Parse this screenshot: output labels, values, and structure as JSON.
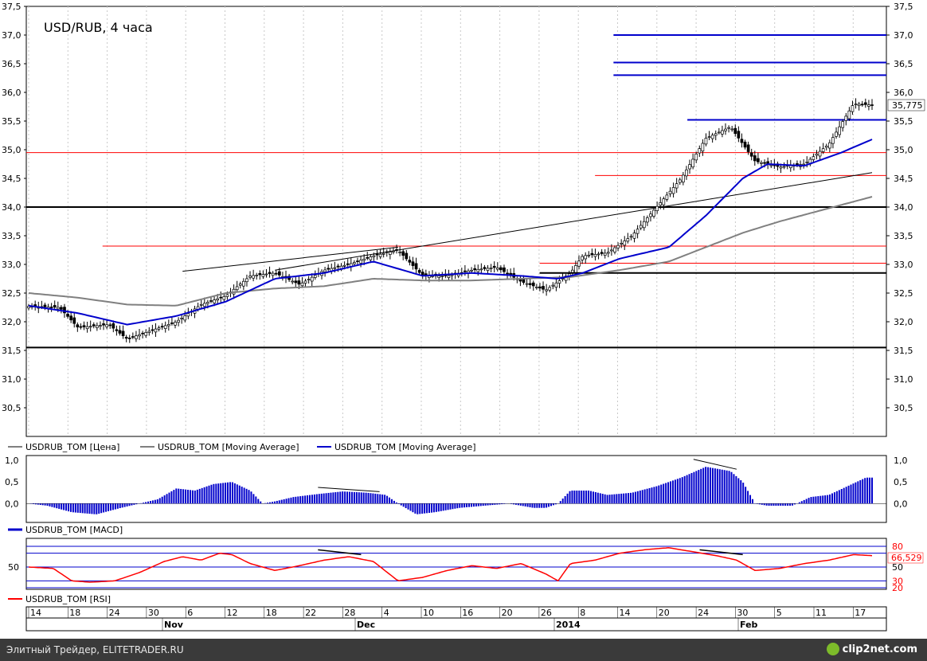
{
  "chart_title": "USD/RUB, 4 часа",
  "last_price_label": "35,775",
  "legend_price": [
    "USDRUB_TOM [Цена]",
    "USDRUB_TOM [Moving Average]",
    "USDRUB_TOM [Moving Average]"
  ],
  "legend_macd": "USDRUB_TOM [MACD]",
  "legend_rsi": "USDRUB_TOM [RSI]",
  "footer_credit": "Элитный Трейдер, ELITETRADER.RU",
  "footer_logo": "clip2net.com",
  "colors": {
    "price": "#000000",
    "ma_long": "#808080",
    "ma_short": "#0000cc",
    "macd": "#0000cc",
    "rsi": "#ff0000",
    "support_black": "#000000",
    "level_red": "#ff0000",
    "level_blue": "#0000cc",
    "footer_bg": "#3a3a3a"
  },
  "chart_data": [
    {
      "type": "candlestick",
      "title": "USD/RUB, 4 часа",
      "y_ticks": [
        "37,5",
        "37,0",
        "36,5",
        "36,0",
        "35,5",
        "35,0",
        "34,5",
        "34,0",
        "33,5",
        "33,0",
        "32,5",
        "32,0",
        "31,5",
        "31,0",
        "30,5"
      ],
      "ylim": [
        30.0,
        37.5
      ],
      "x_day_ticks": [
        "14",
        "18",
        "24",
        "30",
        "6",
        "12",
        "18",
        "22",
        "28",
        "4",
        "10",
        "16",
        "20",
        "26",
        "8",
        "14",
        "20",
        "24",
        "30",
        "5",
        "11",
        "17"
      ],
      "x_month_labels": [
        "Nov",
        "Dec",
        "2014",
        "Feb"
      ],
      "close_path_anchors": [
        [
          0,
          32.27
        ],
        [
          5,
          32.25
        ],
        [
          8,
          31.9
        ],
        [
          13,
          31.95
        ],
        [
          16,
          31.7
        ],
        [
          20,
          31.85
        ],
        [
          24,
          32.0
        ],
        [
          28,
          32.3
        ],
        [
          32,
          32.45
        ],
        [
          36,
          32.8
        ],
        [
          40,
          32.85
        ],
        [
          44,
          32.65
        ],
        [
          48,
          32.9
        ],
        [
          52,
          33.0
        ],
        [
          56,
          33.15
        ],
        [
          60,
          33.25
        ],
        [
          64,
          32.8
        ],
        [
          68,
          32.8
        ],
        [
          72,
          32.9
        ],
        [
          76,
          32.95
        ],
        [
          80,
          32.7
        ],
        [
          84,
          32.55
        ],
        [
          88,
          32.85
        ],
        [
          90,
          33.15
        ],
        [
          94,
          33.2
        ],
        [
          98,
          33.5
        ],
        [
          102,
          34.0
        ],
        [
          106,
          34.5
        ],
        [
          110,
          35.2
        ],
        [
          114,
          35.4
        ],
        [
          118,
          34.8
        ],
        [
          122,
          34.7
        ],
        [
          126,
          34.75
        ],
        [
          130,
          35.1
        ],
        [
          134,
          35.8
        ],
        [
          137,
          35.78
        ]
      ],
      "last_close": 35.775,
      "moving_average_long_anchors": [
        [
          0,
          32.5
        ],
        [
          8,
          32.42
        ],
        [
          16,
          32.3
        ],
        [
          24,
          32.28
        ],
        [
          32,
          32.5
        ],
        [
          40,
          32.58
        ],
        [
          48,
          32.62
        ],
        [
          56,
          32.75
        ],
        [
          64,
          32.72
        ],
        [
          72,
          32.72
        ],
        [
          80,
          32.75
        ],
        [
          88,
          32.78
        ],
        [
          96,
          32.9
        ],
        [
          104,
          33.05
        ],
        [
          110,
          33.3
        ],
        [
          116,
          33.55
        ],
        [
          122,
          33.75
        ],
        [
          130,
          33.98
        ],
        [
          137,
          34.18
        ]
      ],
      "moving_average_short_anchors": [
        [
          0,
          32.28
        ],
        [
          8,
          32.15
        ],
        [
          16,
          31.95
        ],
        [
          24,
          32.1
        ],
        [
          32,
          32.35
        ],
        [
          40,
          32.75
        ],
        [
          48,
          32.85
        ],
        [
          56,
          33.05
        ],
        [
          64,
          32.8
        ],
        [
          72,
          32.85
        ],
        [
          80,
          32.8
        ],
        [
          86,
          32.75
        ],
        [
          90,
          32.85
        ],
        [
          96,
          33.1
        ],
        [
          104,
          33.3
        ],
        [
          110,
          33.85
        ],
        [
          116,
          34.5
        ],
        [
          120,
          34.75
        ],
        [
          126,
          34.72
        ],
        [
          132,
          34.95
        ],
        [
          137,
          35.18
        ]
      ],
      "horizontal_levels": [
        {
          "value": 34.95,
          "color": "#ff0000",
          "from": 0,
          "to": 137
        },
        {
          "value": 33.32,
          "color": "#ff0000",
          "from": 12,
          "to": 137
        },
        {
          "value": 34.55,
          "color": "#ff0000",
          "from": 92,
          "to": 137
        },
        {
          "value": 33.02,
          "color": "#ff0000",
          "from": 83,
          "to": 137
        },
        {
          "value": 34.0,
          "color": "#000000",
          "from": 0,
          "to": 137
        },
        {
          "value": 31.55,
          "color": "#000000",
          "from": 0,
          "to": 137
        },
        {
          "value": 32.85,
          "color": "#000000",
          "from": 83,
          "to": 137
        },
        {
          "value": 37.0,
          "color": "#0000cc",
          "from": 95,
          "to": 137
        },
        {
          "value": 36.52,
          "color": "#0000cc",
          "from": 95,
          "to": 137
        },
        {
          "value": 36.3,
          "color": "#0000cc",
          "from": 95,
          "to": 137
        },
        {
          "value": 35.52,
          "color": "#0000cc",
          "from": 107,
          "to": 137
        }
      ],
      "trendlines": [
        {
          "from": [
            25,
            32.88
          ],
          "to": [
            60,
            33.3
          ],
          "color": "#000000"
        },
        {
          "from": [
            40,
            32.9
          ],
          "to": [
            137,
            34.6
          ],
          "color": "#000000"
        }
      ]
    },
    {
      "type": "area",
      "title": "USDRUB_TOM [MACD]",
      "y_ticks": [
        "1,0",
        "0,5",
        "0,0"
      ],
      "ylim": [
        -0.4,
        1.0
      ],
      "values_anchors": [
        [
          0,
          0.0
        ],
        [
          3,
          -0.05
        ],
        [
          7,
          -0.2
        ],
        [
          11,
          -0.25
        ],
        [
          15,
          -0.1
        ],
        [
          18,
          0.0
        ],
        [
          21,
          0.1
        ],
        [
          24,
          0.35
        ],
        [
          27,
          0.3
        ],
        [
          30,
          0.45
        ],
        [
          33,
          0.5
        ],
        [
          36,
          0.3
        ],
        [
          38,
          0.0
        ],
        [
          40,
          0.05
        ],
        [
          43,
          0.15
        ],
        [
          47,
          0.22
        ],
        [
          51,
          0.28
        ],
        [
          55,
          0.25
        ],
        [
          58,
          0.2
        ],
        [
          60,
          0.0
        ],
        [
          63,
          -0.25
        ],
        [
          66,
          -0.2
        ],
        [
          70,
          -0.1
        ],
        [
          74,
          -0.05
        ],
        [
          78,
          0.0
        ],
        [
          82,
          -0.1
        ],
        [
          84,
          -0.1
        ],
        [
          86,
          0.0
        ],
        [
          88,
          0.3
        ],
        [
          91,
          0.3
        ],
        [
          94,
          0.2
        ],
        [
          98,
          0.25
        ],
        [
          102,
          0.4
        ],
        [
          106,
          0.6
        ],
        [
          110,
          0.85
        ],
        [
          114,
          0.75
        ],
        [
          116,
          0.5
        ],
        [
          118,
          0.0
        ],
        [
          120,
          -0.05
        ],
        [
          124,
          -0.05
        ],
        [
          127,
          0.15
        ],
        [
          130,
          0.2
        ],
        [
          133,
          0.4
        ],
        [
          136,
          0.6
        ]
      ],
      "divergence_lines": [
        {
          "from": [
            47,
            0.3
          ],
          "to": [
            57,
            0.2
          ]
        },
        {
          "from": [
            108,
            0.95
          ],
          "to": [
            115,
            0.72
          ]
        }
      ]
    },
    {
      "type": "line",
      "title": "USDRUB_TOM [RSI]",
      "y_ticks": [
        "80",
        "50",
        "30",
        "20"
      ],
      "ylim": [
        20,
        80
      ],
      "last_value_label": "66,529",
      "guide_levels": [
        80,
        70,
        50,
        30,
        20
      ],
      "values_anchors": [
        [
          0,
          50
        ],
        [
          4,
          48
        ],
        [
          7,
          30
        ],
        [
          10,
          28
        ],
        [
          14,
          30
        ],
        [
          18,
          42
        ],
        [
          22,
          58
        ],
        [
          25,
          65
        ],
        [
          28,
          60
        ],
        [
          31,
          70
        ],
        [
          33,
          68
        ],
        [
          36,
          55
        ],
        [
          40,
          45
        ],
        [
          44,
          52
        ],
        [
          48,
          60
        ],
        [
          52,
          65
        ],
        [
          56,
          58
        ],
        [
          60,
          30
        ],
        [
          64,
          35
        ],
        [
          68,
          45
        ],
        [
          72,
          52
        ],
        [
          76,
          48
        ],
        [
          80,
          55
        ],
        [
          84,
          40
        ],
        [
          86,
          30
        ],
        [
          88,
          55
        ],
        [
          92,
          60
        ],
        [
          96,
          70
        ],
        [
          100,
          75
        ],
        [
          104,
          78
        ],
        [
          108,
          72
        ],
        [
          112,
          66
        ],
        [
          115,
          60
        ],
        [
          118,
          45
        ],
        [
          122,
          48
        ],
        [
          126,
          55
        ],
        [
          130,
          60
        ],
        [
          134,
          68
        ],
        [
          137,
          66.5
        ]
      ],
      "divergence_lines": [
        {
          "from": [
            47,
            75
          ],
          "to": [
            54,
            68
          ]
        },
        {
          "from": [
            109,
            75
          ],
          "to": [
            116,
            68
          ]
        }
      ]
    }
  ]
}
